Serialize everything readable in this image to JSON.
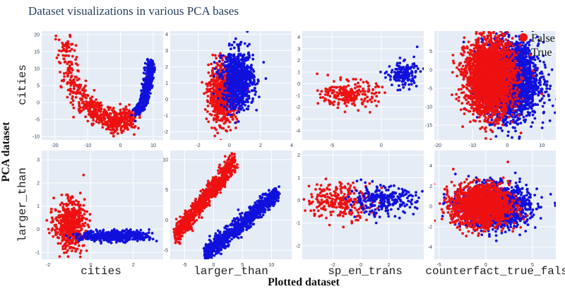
{
  "title": "Dataset visualizations in various PCA bases",
  "x_title": "Plotted dataset",
  "y_title": "PCA dataset",
  "legend": {
    "position": "top-right",
    "entries": [
      {
        "name": "False",
        "color": "#ee1111"
      },
      {
        "name": "True",
        "color": "#1111dd"
      }
    ]
  },
  "colors": {
    "panel_bg": "#e5ecf6",
    "grid": "#ffffff",
    "false": "#ee1111",
    "true": "#1111dd"
  },
  "col_labels": [
    "cities",
    "larger_than",
    "sp_en_trans",
    "counterfact_true_false"
  ],
  "row_labels": [
    "cities",
    "larger_than"
  ],
  "chart_data": {
    "type": "scatter",
    "title": "Dataset visualizations in various PCA bases",
    "xlabel": "Plotted dataset",
    "ylabel": "PCA dataset",
    "grid": true,
    "series_names": [
      "False",
      "True"
    ],
    "panels": [
      {
        "row": 0,
        "col": 0,
        "row_label": "cities",
        "col_label": "cities",
        "xlim": [
          -24,
          13
        ],
        "ylim": [
          -11,
          21
        ],
        "xticks": [
          -20,
          -10,
          0,
          10
        ],
        "yticks": [
          -10,
          -5,
          0,
          5,
          10,
          15,
          20
        ],
        "clusters": [
          {
            "series": "False",
            "shape": "curve",
            "points": [
              [
                -17,
                18
              ],
              [
                -15,
                6
              ],
              [
                -11,
                0
              ],
              [
                -7,
                -3
              ],
              [
                -3,
                -5
              ],
              [
                0,
                -6
              ],
              [
                3,
                -4
              ]
            ],
            "spread": 1.6,
            "n": 600
          },
          {
            "series": "True",
            "shape": "curve",
            "points": [
              [
                5,
                -3
              ],
              [
                7,
                0
              ],
              [
                8,
                4
              ],
              [
                9,
                8
              ],
              [
                9,
                12
              ]
            ],
            "spread": 0.7,
            "n": 450
          }
        ]
      },
      {
        "row": 0,
        "col": 1,
        "row_label": "cities",
        "col_label": "larger_than",
        "xlim": [
          -3.8,
          4
        ],
        "ylim": [
          -2.5,
          4.2
        ],
        "xticks": [
          -2,
          0,
          2,
          4
        ],
        "yticks": [
          -2,
          -1,
          0,
          1,
          2,
          3,
          4
        ],
        "clusters": [
          {
            "series": "False",
            "shape": "blob",
            "center": [
              -0.4,
              0.3
            ],
            "sd": [
              0.45,
              0.85
            ],
            "n": 800
          },
          {
            "series": "True",
            "shape": "blob",
            "center": [
              0.55,
              1.2
            ],
            "sd": [
              0.5,
              0.9
            ],
            "n": 800
          }
        ]
      },
      {
        "row": 0,
        "col": 2,
        "row_label": "cities",
        "col_label": "sp_en_trans",
        "xlim": [
          -8,
          4.3
        ],
        "ylim": [
          -4.8,
          4.5
        ],
        "xticks": [
          -5,
          0
        ],
        "yticks": [
          -4,
          -3,
          -2,
          -1,
          0,
          1,
          2,
          3,
          4
        ],
        "clusters": [
          {
            "series": "False",
            "shape": "blob",
            "center": [
              -3.2,
              -0.9
            ],
            "sd": [
              1.4,
              0.55
            ],
            "n": 220
          },
          {
            "series": "True",
            "shape": "blob",
            "center": [
              2.2,
              0.8
            ],
            "sd": [
              0.75,
              0.55
            ],
            "n": 160
          }
        ]
      },
      {
        "row": 0,
        "col": 3,
        "row_label": "cities",
        "col_label": "counterfact_true_false",
        "xlim": [
          -21,
          14
        ],
        "ylim": [
          -19,
          10.5
        ],
        "xticks": [
          -20,
          -10,
          0,
          10
        ],
        "yticks": [
          -15,
          -10,
          -5,
          0,
          5
        ],
        "clusters": [
          {
            "series": "True",
            "shape": "blob",
            "center": [
              1,
              -3
            ],
            "sd": [
              4,
              5
            ],
            "n": 2500
          },
          {
            "series": "False",
            "shape": "blob",
            "center": [
              -5,
              -2
            ],
            "sd": [
              3.5,
              5
            ],
            "n": 2500
          }
        ]
      },
      {
        "row": 1,
        "col": 0,
        "row_label": "larger_than",
        "col_label": "cities",
        "xlim": [
          -2.3,
          3.4
        ],
        "ylim": [
          -1.3,
          3.4
        ],
        "xticks": [
          -2,
          0,
          2
        ],
        "yticks": [
          -1,
          0,
          1,
          2,
          3
        ],
        "clusters": [
          {
            "series": "False",
            "shape": "blob",
            "center": [
              -1.0,
              0.2
            ],
            "sd": [
              0.35,
              0.5
            ],
            "n": 550
          },
          {
            "series": "True",
            "shape": "blob",
            "center": [
              1.2,
              -0.3
            ],
            "sd": [
              0.8,
              0.12
            ],
            "n": 500
          }
        ]
      },
      {
        "row": 1,
        "col": 1,
        "row_label": "larger_than",
        "col_label": "larger_than",
        "xlim": [
          -7.5,
          13.5
        ],
        "ylim": [
          -6.5,
          11.5
        ],
        "xticks": [
          -5,
          0,
          5,
          10
        ],
        "yticks": [
          -5,
          0,
          5,
          10
        ],
        "clusters": [
          {
            "series": "False",
            "shape": "line",
            "from": [
              -6.5,
              -2.5
            ],
            "to": [
              3.5,
              9.5
            ],
            "spread": 0.75,
            "n": 900
          },
          {
            "series": "True",
            "shape": "line",
            "from": [
              -1.5,
              -5.8
            ],
            "to": [
              11,
              4.5
            ],
            "spread": 0.75,
            "n": 900
          }
        ]
      },
      {
        "row": 1,
        "col": 2,
        "row_label": "larger_than",
        "col_label": "sp_en_trans",
        "xlim": [
          -4.2,
          4.5
        ],
        "ylim": [
          -2.6,
          2.2
        ],
        "xticks": [
          -2,
          0,
          2
        ],
        "yticks": [
          -2,
          -1,
          0,
          1,
          2
        ],
        "clusters": [
          {
            "series": "False",
            "shape": "blob",
            "center": [
              -1.5,
              0.0
            ],
            "sd": [
              1.2,
              0.4
            ],
            "n": 260
          },
          {
            "series": "True",
            "shape": "blob",
            "center": [
              1.5,
              0.0
            ],
            "sd": [
              1.2,
              0.3
            ],
            "n": 260
          }
        ]
      },
      {
        "row": 1,
        "col": 3,
        "row_label": "larger_than",
        "col_label": "counterfact_true_false",
        "xlim": [
          -5.5,
          7.5
        ],
        "ylim": [
          -5.2,
          5.5
        ],
        "xticks": [
          -5,
          0,
          5
        ],
        "yticks": [
          -4,
          -2,
          0,
          2,
          4
        ],
        "clusters": [
          {
            "series": "True",
            "shape": "blob",
            "center": [
              1,
              0
            ],
            "sd": [
              1.8,
              1.0
            ],
            "n": 1600
          },
          {
            "series": "False",
            "shape": "blob",
            "center": [
              -0.5,
              0.1
            ],
            "sd": [
              1.5,
              1.0
            ],
            "n": 1600
          }
        ]
      }
    ]
  }
}
